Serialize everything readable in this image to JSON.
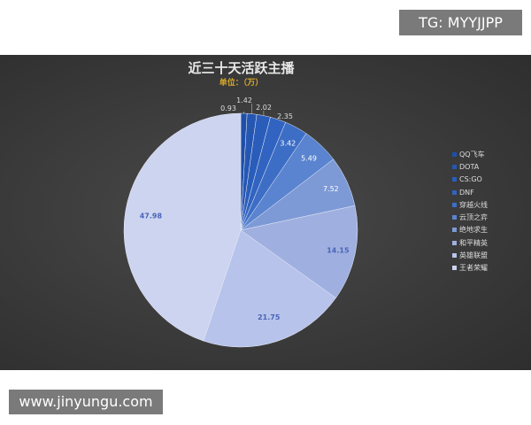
{
  "watermark_top": "TG: MYYJJPP",
  "watermark_bottom": "www.jinyungu.com",
  "chart_data": {
    "type": "pie",
    "title": "近三十天活跃主播",
    "subtitle": "单位：（万）",
    "legend_position": "right",
    "categories": [
      "QQ飞车",
      "DOTA",
      "CS:GO",
      "DNF",
      "穿越火线",
      "云顶之弈",
      "绝地求生",
      "和平精英",
      "英雄联盟",
      "王者荣耀"
    ],
    "values": [
      0.93,
      1.42,
      2.02,
      2.35,
      3.42,
      5.49,
      7.52,
      14.15,
      21.75,
      47.98
    ],
    "labels": [
      "0.93",
      "1.42",
      "2.02",
      "2.35",
      "3.42",
      "5.49",
      "7.52",
      "14.15",
      "21.75",
      "47.98"
    ],
    "colors": [
      "#1f4fa8",
      "#2556b2",
      "#2a5dba",
      "#3163c0",
      "#3d6ec6",
      "#5a84cf",
      "#7d9ad6",
      "#9fb0e0",
      "#b7c3ea",
      "#ccd4f0"
    ]
  }
}
